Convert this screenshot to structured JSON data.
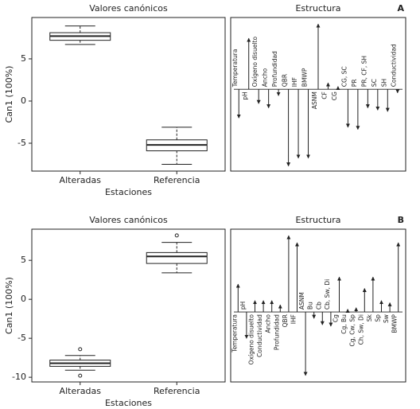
{
  "chart_data": [
    {
      "type": "boxplot",
      "title": "Valores canónicos",
      "x_label": "Estaciones",
      "y_label": "Can1 (100%)",
      "categories": [
        "Alteradas",
        "Referencia"
      ],
      "boxes": [
        {
          "whisker_low": 6.7,
          "q1": 7.2,
          "median": 7.7,
          "q3": 8.1,
          "whisker_high": 8.9,
          "outliers": []
        },
        {
          "whisker_low": -7.5,
          "q1": -5.9,
          "median": -5.2,
          "q3": -4.6,
          "whisker_high": -3.1,
          "outliers": []
        }
      ],
      "ylim": [
        -8.3,
        9.9
      ],
      "yticks": [
        -5,
        0,
        5
      ]
    },
    {
      "type": "arrows",
      "title": "Estructura",
      "panel_label": "A",
      "categories": [
        "Temperatura",
        "pH",
        "Oxígeno disuelto",
        "Ancho",
        "Profundidad",
        "QBR",
        "IHF",
        "BMWP",
        "ASNM",
        "CF",
        "CG",
        "CG, SC",
        "PR",
        "PR, CF, SH",
        "SC",
        "SH",
        "Conductividad"
      ],
      "values": [
        -0.4,
        0.71,
        -0.2,
        -0.26,
        -0.09,
        -1.07,
        -0.96,
        -0.96,
        0.91,
        0.09,
        0.04,
        -0.53,
        -0.56,
        -0.26,
        -0.29,
        -0.31,
        -0.05
      ],
      "ylim": [
        -1.14,
        1.0
      ]
    },
    {
      "type": "boxplot",
      "title": "Valores canónicos",
      "x_label": "Estaciones",
      "y_label": "Can1 (100%)",
      "categories": [
        "Alteradas",
        "Referencia"
      ],
      "boxes": [
        {
          "whisker_low": -9.1,
          "q1": -8.6,
          "median": -8.2,
          "q3": -7.8,
          "whisker_high": -7.2,
          "outliers": [
            -6.4,
            -9.8
          ]
        },
        {
          "whisker_low": 3.4,
          "q1": 4.6,
          "median": 5.5,
          "q3": 6.0,
          "whisker_high": 7.3,
          "outliers": [
            8.2
          ]
        }
      ],
      "ylim": [
        -10.6,
        9.0
      ],
      "yticks": [
        -10,
        -5,
        0,
        5
      ]
    },
    {
      "type": "arrows",
      "title": "Estructura",
      "panel_label": "B",
      "categories": [
        "Temperatura",
        "pH",
        "Oxígeno disuelto",
        "Conductividad",
        "Ancho",
        "Profundidad",
        "QBR",
        "IHF",
        "ASNM",
        "Bu",
        "Cb",
        "Cb, Sw, Di",
        "Cg",
        "Cg, Bu",
        "Cg, Cw, Sp",
        "Ch, Sw, Di",
        "Sk",
        "Sp",
        "Sw",
        "BMWP"
      ],
      "values": [
        0.39,
        -0.37,
        0.16,
        0.16,
        0.16,
        0.1,
        1.07,
        0.97,
        -0.89,
        -0.09,
        -0.18,
        -0.2,
        0.49,
        0.04,
        0.06,
        0.33,
        0.49,
        0.16,
        0.13,
        0.97
      ],
      "ylim": [
        -0.98,
        1.16
      ]
    }
  ]
}
